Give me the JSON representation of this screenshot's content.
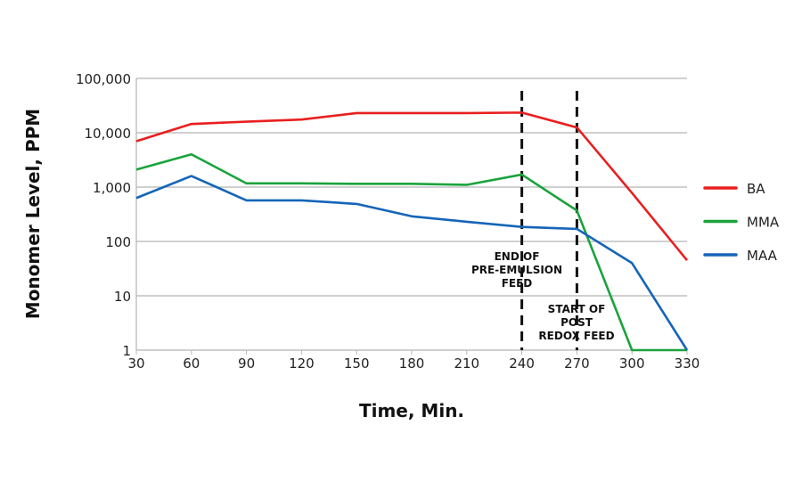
{
  "chart_data": {
    "type": "line",
    "title": "",
    "xlabel": "Time, Min.",
    "ylabel": "Monomer Level, PPM",
    "yscale": "log",
    "ylim": [
      1,
      100000
    ],
    "xlim": [
      30,
      330
    ],
    "grid": true,
    "legend_position": "right",
    "x": [
      30,
      60,
      90,
      120,
      150,
      180,
      210,
      240,
      270,
      300,
      330
    ],
    "x_tick_labels": [
      "30",
      "60",
      "90",
      "120",
      "150",
      "180",
      "210",
      "240",
      "270",
      "300",
      "330"
    ],
    "y_ticks": [
      1,
      10,
      100,
      1000,
      10000,
      100000
    ],
    "y_tick_labels": [
      "1",
      "10",
      "100",
      "1,000",
      "10,000",
      "100,000"
    ],
    "series": [
      {
        "name": "BA",
        "color": "#e8201f",
        "values": [
          7000,
          14500,
          16000,
          17500,
          23000,
          23000,
          23000,
          23500,
          12500,
          780,
          45
        ]
      },
      {
        "name": "MMA",
        "color": "#1aa33c",
        "values": [
          2100,
          4000,
          1170,
          1170,
          1150,
          1150,
          1100,
          1700,
          370,
          1,
          1
        ]
      },
      {
        "name": "MAA",
        "color": "#1565b8",
        "values": [
          630,
          1600,
          570,
          570,
          490,
          290,
          230,
          185,
          170,
          40,
          1
        ]
      }
    ],
    "annotations": [
      {
        "x": 240,
        "lines": [
          "END OF",
          "PRE-EMULSION",
          "FEED"
        ]
      },
      {
        "x": 270,
        "lines": [
          "START OF",
          "POST",
          "REDOX FEED"
        ]
      }
    ]
  }
}
